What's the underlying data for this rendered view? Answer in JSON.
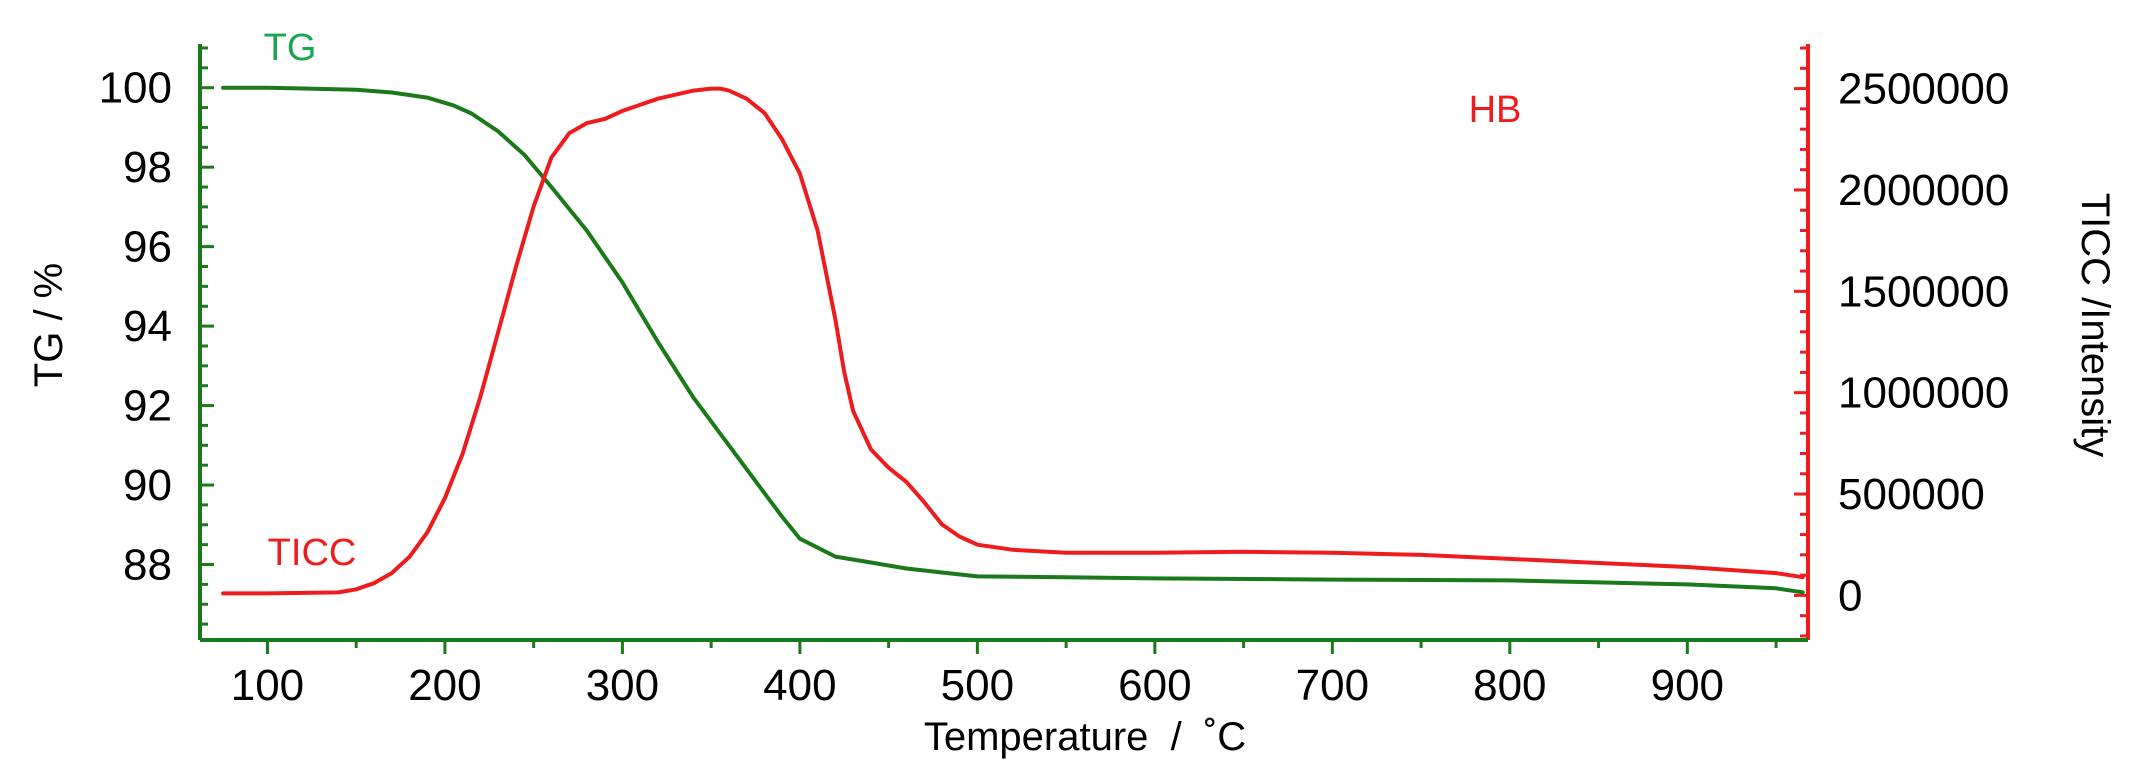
{
  "colors": {
    "tg": "#1a7a1a",
    "tg_label": "#1aa550",
    "ticc": "#ee1c1c",
    "axis_text": "#000000"
  },
  "chart_data": {
    "type": "line",
    "title": "",
    "xlabel": "Temperature  /  ˚C",
    "ylabel_left": "TG / %",
    "ylabel_right": "TICC /Intensity",
    "xlim": [
      62,
      968
    ],
    "ylim_left": [
      86.1,
      101.1
    ],
    "ylim_right": [
      -220000,
      2720000
    ],
    "x_ticks": [
      100,
      200,
      300,
      400,
      500,
      600,
      700,
      800,
      900
    ],
    "y_left_ticks": [
      88,
      90,
      92,
      94,
      96,
      98,
      100
    ],
    "y_right_ticks": [
      0,
      500000,
      1000000,
      1500000,
      2000000,
      2500000
    ],
    "annotations": [
      "TG",
      "TICC",
      "HB"
    ],
    "grid": false,
    "series": [
      {
        "name": "TG",
        "axis": "left",
        "x": [
          75,
          100,
          120,
          150,
          170,
          190,
          205,
          215,
          230,
          245,
          260,
          280,
          300,
          320,
          340,
          360,
          375,
          390,
          400,
          420,
          440,
          460,
          480,
          500,
          550,
          600,
          700,
          800,
          850,
          900,
          950,
          965
        ],
        "y": [
          100.0,
          100.0,
          99.98,
          99.95,
          99.88,
          99.75,
          99.55,
          99.35,
          98.9,
          98.3,
          97.5,
          96.4,
          95.1,
          93.6,
          92.2,
          91.0,
          90.1,
          89.2,
          88.65,
          88.2,
          88.05,
          87.9,
          87.8,
          87.7,
          87.68,
          87.65,
          87.62,
          87.6,
          87.55,
          87.5,
          87.4,
          87.3
        ]
      },
      {
        "name": "TICC",
        "axis": "right",
        "x": [
          75,
          100,
          140,
          150,
          160,
          170,
          180,
          190,
          200,
          210,
          220,
          230,
          240,
          250,
          260,
          265,
          270,
          280,
          290,
          300,
          320,
          340,
          350,
          355,
          360,
          370,
          380,
          390,
          400,
          410,
          420,
          425,
          430,
          440,
          450,
          460,
          470,
          480,
          490,
          500,
          520,
          550,
          600,
          650,
          700,
          750,
          800,
          850,
          900,
          950,
          965
        ],
        "y": [
          10000,
          10000,
          15000,
          30000,
          60000,
          110000,
          190000,
          310000,
          480000,
          700000,
          980000,
          1300000,
          1620000,
          1920000,
          2160000,
          2220000,
          2280000,
          2330000,
          2350000,
          2390000,
          2450000,
          2490000,
          2500000,
          2500000,
          2490000,
          2450000,
          2380000,
          2250000,
          2080000,
          1800000,
          1360000,
          1100000,
          910000,
          720000,
          630000,
          560000,
          460000,
          350000,
          290000,
          250000,
          225000,
          210000,
          210000,
          215000,
          210000,
          200000,
          180000,
          160000,
          140000,
          110000,
          90000
        ]
      }
    ]
  }
}
